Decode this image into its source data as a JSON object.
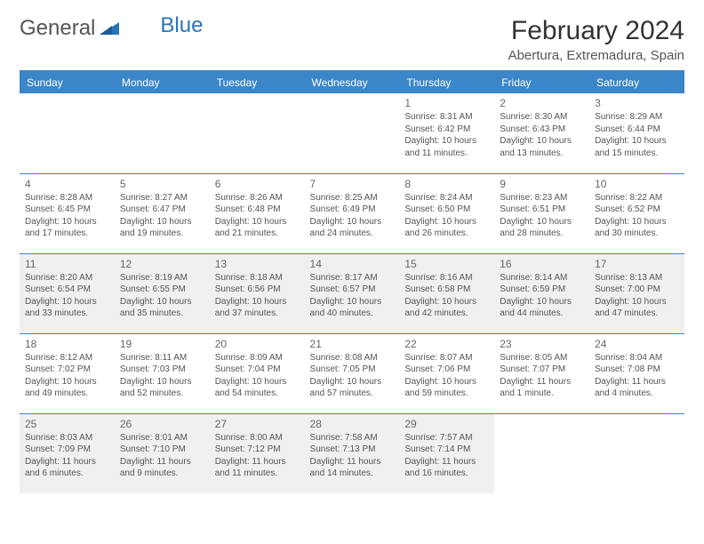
{
  "logo": {
    "general": "General",
    "blue": "Blue"
  },
  "title": "February 2024",
  "location": "Abertura, Extremadura, Spain",
  "colors": {
    "header_bg": "#3a86c8",
    "header_text": "#ffffff",
    "shaded_bg": "#f0f0f0",
    "border": "#3a86c8",
    "text": "#555555",
    "logo_blue": "#2a74b8"
  },
  "weekdays": [
    "Sunday",
    "Monday",
    "Tuesday",
    "Wednesday",
    "Thursday",
    "Friday",
    "Saturday"
  ],
  "weeks": [
    {
      "shaded": false,
      "days": [
        null,
        null,
        null,
        null,
        {
          "n": "1",
          "sr": "8:31 AM",
          "ss": "6:42 PM",
          "dl": "10 hours and 11 minutes."
        },
        {
          "n": "2",
          "sr": "8:30 AM",
          "ss": "6:43 PM",
          "dl": "10 hours and 13 minutes."
        },
        {
          "n": "3",
          "sr": "8:29 AM",
          "ss": "6:44 PM",
          "dl": "10 hours and 15 minutes."
        }
      ]
    },
    {
      "shaded": false,
      "days": [
        {
          "n": "4",
          "sr": "8:28 AM",
          "ss": "6:45 PM",
          "dl": "10 hours and 17 minutes."
        },
        {
          "n": "5",
          "sr": "8:27 AM",
          "ss": "6:47 PM",
          "dl": "10 hours and 19 minutes."
        },
        {
          "n": "6",
          "sr": "8:26 AM",
          "ss": "6:48 PM",
          "dl": "10 hours and 21 minutes."
        },
        {
          "n": "7",
          "sr": "8:25 AM",
          "ss": "6:49 PM",
          "dl": "10 hours and 24 minutes."
        },
        {
          "n": "8",
          "sr": "8:24 AM",
          "ss": "6:50 PM",
          "dl": "10 hours and 26 minutes."
        },
        {
          "n": "9",
          "sr": "8:23 AM",
          "ss": "6:51 PM",
          "dl": "10 hours and 28 minutes."
        },
        {
          "n": "10",
          "sr": "8:22 AM",
          "ss": "6:52 PM",
          "dl": "10 hours and 30 minutes."
        }
      ]
    },
    {
      "shaded": true,
      "days": [
        {
          "n": "11",
          "sr": "8:20 AM",
          "ss": "6:54 PM",
          "dl": "10 hours and 33 minutes."
        },
        {
          "n": "12",
          "sr": "8:19 AM",
          "ss": "6:55 PM",
          "dl": "10 hours and 35 minutes."
        },
        {
          "n": "13",
          "sr": "8:18 AM",
          "ss": "6:56 PM",
          "dl": "10 hours and 37 minutes."
        },
        {
          "n": "14",
          "sr": "8:17 AM",
          "ss": "6:57 PM",
          "dl": "10 hours and 40 minutes."
        },
        {
          "n": "15",
          "sr": "8:16 AM",
          "ss": "6:58 PM",
          "dl": "10 hours and 42 minutes."
        },
        {
          "n": "16",
          "sr": "8:14 AM",
          "ss": "6:59 PM",
          "dl": "10 hours and 44 minutes."
        },
        {
          "n": "17",
          "sr": "8:13 AM",
          "ss": "7:00 PM",
          "dl": "10 hours and 47 minutes."
        }
      ]
    },
    {
      "shaded": false,
      "days": [
        {
          "n": "18",
          "sr": "8:12 AM",
          "ss": "7:02 PM",
          "dl": "10 hours and 49 minutes."
        },
        {
          "n": "19",
          "sr": "8:11 AM",
          "ss": "7:03 PM",
          "dl": "10 hours and 52 minutes."
        },
        {
          "n": "20",
          "sr": "8:09 AM",
          "ss": "7:04 PM",
          "dl": "10 hours and 54 minutes."
        },
        {
          "n": "21",
          "sr": "8:08 AM",
          "ss": "7:05 PM",
          "dl": "10 hours and 57 minutes."
        },
        {
          "n": "22",
          "sr": "8:07 AM",
          "ss": "7:06 PM",
          "dl": "10 hours and 59 minutes."
        },
        {
          "n": "23",
          "sr": "8:05 AM",
          "ss": "7:07 PM",
          "dl": "11 hours and 1 minute."
        },
        {
          "n": "24",
          "sr": "8:04 AM",
          "ss": "7:08 PM",
          "dl": "11 hours and 4 minutes."
        }
      ]
    },
    {
      "shaded": true,
      "days": [
        {
          "n": "25",
          "sr": "8:03 AM",
          "ss": "7:09 PM",
          "dl": "11 hours and 6 minutes."
        },
        {
          "n": "26",
          "sr": "8:01 AM",
          "ss": "7:10 PM",
          "dl": "11 hours and 9 minutes."
        },
        {
          "n": "27",
          "sr": "8:00 AM",
          "ss": "7:12 PM",
          "dl": "11 hours and 11 minutes."
        },
        {
          "n": "28",
          "sr": "7:58 AM",
          "ss": "7:13 PM",
          "dl": "11 hours and 14 minutes."
        },
        {
          "n": "29",
          "sr": "7:57 AM",
          "ss": "7:14 PM",
          "dl": "11 hours and 16 minutes."
        },
        null,
        null
      ]
    }
  ],
  "labels": {
    "sunrise": "Sunrise: ",
    "sunset": "Sunset: ",
    "daylight": "Daylight: "
  }
}
